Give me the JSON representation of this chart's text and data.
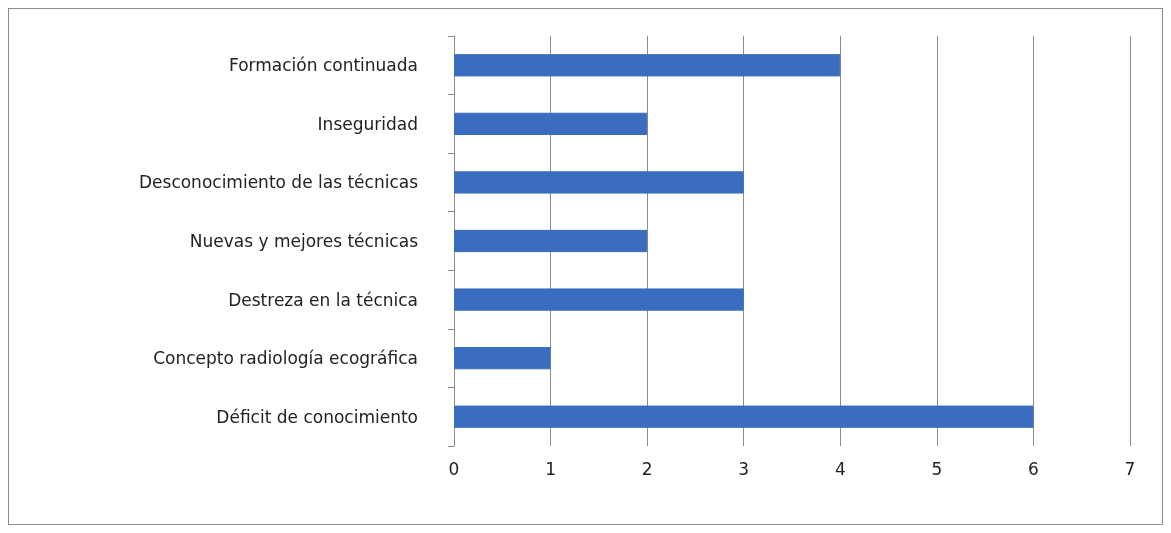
{
  "chart_data": {
    "type": "bar",
    "orientation": "horizontal",
    "categories": [
      "Formación continuada",
      "Inseguridad",
      "Desconocimiento de las técnicas",
      "Nuevas y mejores técnicas",
      "Destreza en la técnica",
      "Concepto radiología ecográfica",
      "Déficit de conocimiento"
    ],
    "values": [
      4,
      2,
      3,
      2,
      3,
      1,
      6
    ],
    "color": "#3a6dbf",
    "xlim": [
      0,
      7
    ],
    "xticks": [
      0,
      1,
      2,
      3,
      4,
      5,
      6,
      7
    ],
    "grid": "x"
  }
}
